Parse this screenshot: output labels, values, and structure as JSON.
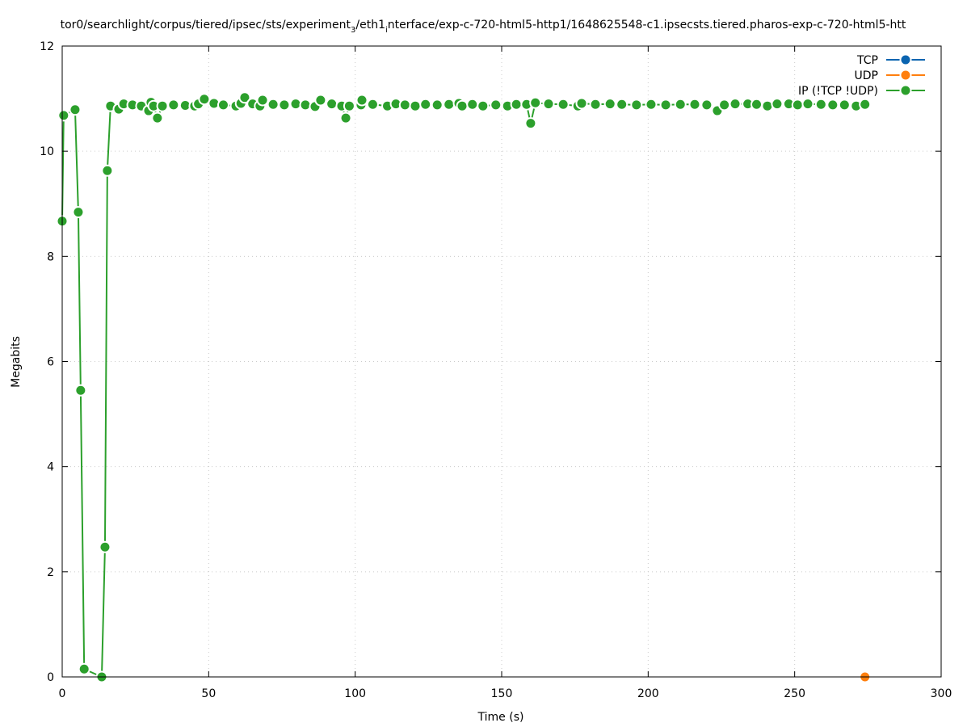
{
  "chart_data": {
    "type": "line",
    "title": "tor0/searchlight/corpus/tiered/ipsec/sts/experiment",
    "title_sub1": "3",
    "title_mid": "/eth1",
    "title_sub2": "i",
    "title_end": "nterface/exp-c-720-html5-http1/1648625548-c1.ipsecsts.tiered.pharos-exp-c-720-html5-htt",
    "xlabel": "Time (s)",
    "ylabel": "Megabits",
    "xlim": [
      0,
      300
    ],
    "ylim": [
      0,
      12
    ],
    "xticks": [
      0,
      50,
      100,
      150,
      200,
      250,
      300
    ],
    "yticks": [
      0,
      2,
      4,
      6,
      8,
      10,
      12
    ],
    "grid": true,
    "legend_position": "top-right",
    "series": [
      {
        "name": "TCP",
        "color": "#0a64b0",
        "points": []
      },
      {
        "name": "UDP",
        "color": "#ff7f0e",
        "points": [
          [
            274,
            0
          ]
        ]
      },
      {
        "name": "IP (!TCP  !UDP)",
        "color": "#2ca02c",
        "points": [
          [
            0,
            8.67
          ],
          [
            0.5,
            10.68
          ],
          [
            4.4,
            10.79
          ],
          [
            5.5,
            8.84
          ],
          [
            6.3,
            5.45
          ],
          [
            7.5,
            0.15
          ],
          [
            13.5,
            0
          ],
          [
            14.6,
            2.47
          ],
          [
            15.4,
            9.63
          ],
          [
            16.5,
            10.86
          ],
          [
            19.3,
            10.8
          ],
          [
            21,
            10.9
          ],
          [
            24,
            10.88
          ],
          [
            27,
            10.86
          ],
          [
            29.5,
            10.77
          ],
          [
            30.3,
            10.93
          ],
          [
            31.2,
            10.86
          ],
          [
            32.5,
            10.63
          ],
          [
            34.2,
            10.86
          ],
          [
            38,
            10.88
          ],
          [
            42,
            10.87
          ],
          [
            45.2,
            10.86
          ],
          [
            46.5,
            10.9
          ],
          [
            48.5,
            10.99
          ],
          [
            51.8,
            10.91
          ],
          [
            55,
            10.88
          ],
          [
            59.3,
            10.86
          ],
          [
            61,
            10.91
          ],
          [
            62.3,
            11.02
          ],
          [
            65,
            10.9
          ],
          [
            67.5,
            10.86
          ],
          [
            68.4,
            10.97
          ],
          [
            72,
            10.89
          ],
          [
            75.8,
            10.88
          ],
          [
            79.7,
            10.9
          ],
          [
            83,
            10.88
          ],
          [
            86.3,
            10.85
          ],
          [
            88.2,
            10.97
          ],
          [
            92,
            10.9
          ],
          [
            95.4,
            10.86
          ],
          [
            96.8,
            10.63
          ],
          [
            98,
            10.86
          ],
          [
            102,
            10.88
          ],
          [
            102.3,
            10.97
          ],
          [
            106,
            10.89
          ],
          [
            111,
            10.86
          ],
          [
            113.9,
            10.9
          ],
          [
            117,
            10.88
          ],
          [
            120.5,
            10.86
          ],
          [
            124,
            10.89
          ],
          [
            128,
            10.88
          ],
          [
            132,
            10.89
          ],
          [
            135.4,
            10.91
          ],
          [
            136.5,
            10.86
          ],
          [
            140,
            10.89
          ],
          [
            143.6,
            10.86
          ],
          [
            148,
            10.88
          ],
          [
            152,
            10.86
          ],
          [
            155,
            10.89
          ],
          [
            158.5,
            10.89
          ],
          [
            159.9,
            10.53
          ],
          [
            161.5,
            10.92
          ],
          [
            166,
            10.9
          ],
          [
            171,
            10.89
          ],
          [
            176,
            10.86
          ],
          [
            177.3,
            10.91
          ],
          [
            182,
            10.89
          ],
          [
            187,
            10.9
          ],
          [
            191,
            10.89
          ],
          [
            196,
            10.88
          ],
          [
            201,
            10.89
          ],
          [
            206,
            10.88
          ],
          [
            211,
            10.89
          ],
          [
            215.9,
            10.89
          ],
          [
            220,
            10.88
          ],
          [
            223.6,
            10.77
          ],
          [
            226,
            10.88
          ],
          [
            229.7,
            10.9
          ],
          [
            234,
            10.9
          ],
          [
            237,
            10.89
          ],
          [
            240.7,
            10.86
          ],
          [
            244,
            10.9
          ],
          [
            248,
            10.9
          ],
          [
            251,
            10.88
          ],
          [
            254.5,
            10.9
          ],
          [
            259,
            10.89
          ],
          [
            263,
            10.88
          ],
          [
            267,
            10.88
          ],
          [
            271,
            10.86
          ],
          [
            274,
            10.89
          ]
        ]
      }
    ]
  }
}
